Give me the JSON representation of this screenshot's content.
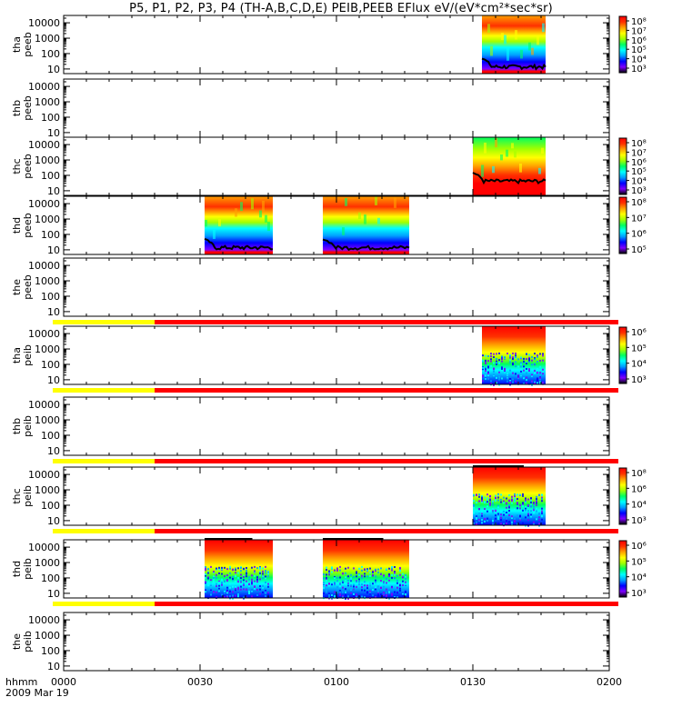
{
  "title": "P5, P1, P2, P3, P4 (TH-A,B,C,D,E) PEIB,PEEB EFlux eV/(eV*cm²*sec*sr)",
  "footer": {
    "hhmm": "hhmm",
    "date": "2009 Mar 19"
  },
  "colors": {
    "yellow_bar": "#ffff00",
    "red_bar": "#ff0000",
    "colormap": [
      "#000000",
      "#7f00ff",
      "#0000ff",
      "#00a0ff",
      "#00ffff",
      "#00ff60",
      "#a0ff00",
      "#ffff00",
      "#ffa000",
      "#ff3000",
      "#ff0000"
    ]
  },
  "chart_data": {
    "type": "heatmap",
    "x_axis": {
      "label": "hhmm",
      "ticks": [
        "0000",
        "0030",
        "0100",
        "0130",
        "0200"
      ],
      "range": [
        "00:00",
        "02:00"
      ],
      "date": "2009 Mar 19"
    },
    "y_ticks": [
      "10000",
      "1000",
      "100",
      "10"
    ],
    "y_range_eV": [
      5,
      30000
    ],
    "y_scale": "log",
    "panels": [
      {
        "probe": "tha",
        "product": "peeb",
        "label1": "tha",
        "label2": "peeb",
        "colorbar_ticks": [
          "10⁸",
          "10⁷",
          "10⁶",
          "10⁵",
          "10⁴",
          "10³"
        ],
        "data_intervals": [
          [
            "01:32",
            "01:46"
          ]
        ],
        "line": true,
        "status_bar": null
      },
      {
        "probe": "thb",
        "product": "peeb",
        "label1": "thb",
        "label2": "peeb",
        "colorbar_ticks": [],
        "data_intervals": [],
        "line": false,
        "status_bar": null
      },
      {
        "probe": "thc",
        "product": "peeb",
        "label1": "thc",
        "label2": "peeb",
        "colorbar_ticks": [
          "10⁸",
          "10⁷",
          "10⁶",
          "10⁵",
          "10⁴",
          "10³"
        ],
        "data_intervals": [
          [
            "01:30",
            "01:46"
          ]
        ],
        "line": true,
        "status_bar": null
      },
      {
        "probe": "thd",
        "product": "peeb",
        "label1": "thd",
        "label2": "peeb",
        "colorbar_ticks": [
          "10⁸",
          "10⁷",
          "10⁶",
          "10⁵"
        ],
        "data_intervals": [
          [
            "00:31",
            "00:46"
          ],
          [
            "00:57",
            "01:16"
          ]
        ],
        "line": true,
        "status_bar": null
      },
      {
        "probe": "the",
        "product": "peeb",
        "label1": "the",
        "label2": "peeb",
        "colorbar_ticks": [],
        "data_intervals": [],
        "line": false,
        "status_bar": {
          "yellow": [
            "00:00",
            "00:20"
          ],
          "red": [
            "00:20",
            "02:00"
          ]
        }
      },
      {
        "probe": "tha",
        "product": "peib",
        "label1": "tha",
        "label2": "peib",
        "colorbar_ticks": [
          "10⁶",
          "10⁵",
          "10⁴",
          "10³"
        ],
        "data_intervals": [
          [
            "01:32",
            "01:46"
          ]
        ],
        "line": false,
        "status_bar": {
          "yellow": [
            "00:00",
            "00:20"
          ],
          "red": [
            "00:20",
            "02:00"
          ]
        }
      },
      {
        "probe": "thb",
        "product": "peib",
        "label1": "thb",
        "label2": "peib",
        "colorbar_ticks": [],
        "data_intervals": [],
        "line": false,
        "status_bar": {
          "yellow": [
            "00:00",
            "00:20"
          ],
          "red": [
            "00:20",
            "02:00"
          ]
        }
      },
      {
        "probe": "thc",
        "product": "peib",
        "label1": "thc",
        "label2": "peib",
        "colorbar_ticks": [
          "10⁸",
          "10⁶",
          "10⁴",
          "10³"
        ],
        "data_intervals": [
          [
            "01:30",
            "01:46"
          ]
        ],
        "line": false,
        "status_bar": {
          "yellow": [
            "00:00",
            "00:20"
          ],
          "red": [
            "00:20",
            "02:00"
          ]
        }
      },
      {
        "probe": "thd",
        "product": "peib",
        "label1": "thd",
        "label2": "peib",
        "colorbar_ticks": [
          "10⁶",
          "10⁵",
          "10⁴",
          "10³"
        ],
        "data_intervals": [
          [
            "00:31",
            "00:46"
          ],
          [
            "00:57",
            "01:16"
          ]
        ],
        "line": false,
        "status_bar": {
          "yellow": [
            "00:00",
            "00:20"
          ],
          "red": [
            "00:20",
            "02:00"
          ]
        }
      },
      {
        "probe": "the",
        "product": "peib",
        "label1": "the",
        "label2": "peib",
        "colorbar_ticks": [],
        "data_intervals": [],
        "line": false,
        "status_bar": null
      }
    ]
  }
}
